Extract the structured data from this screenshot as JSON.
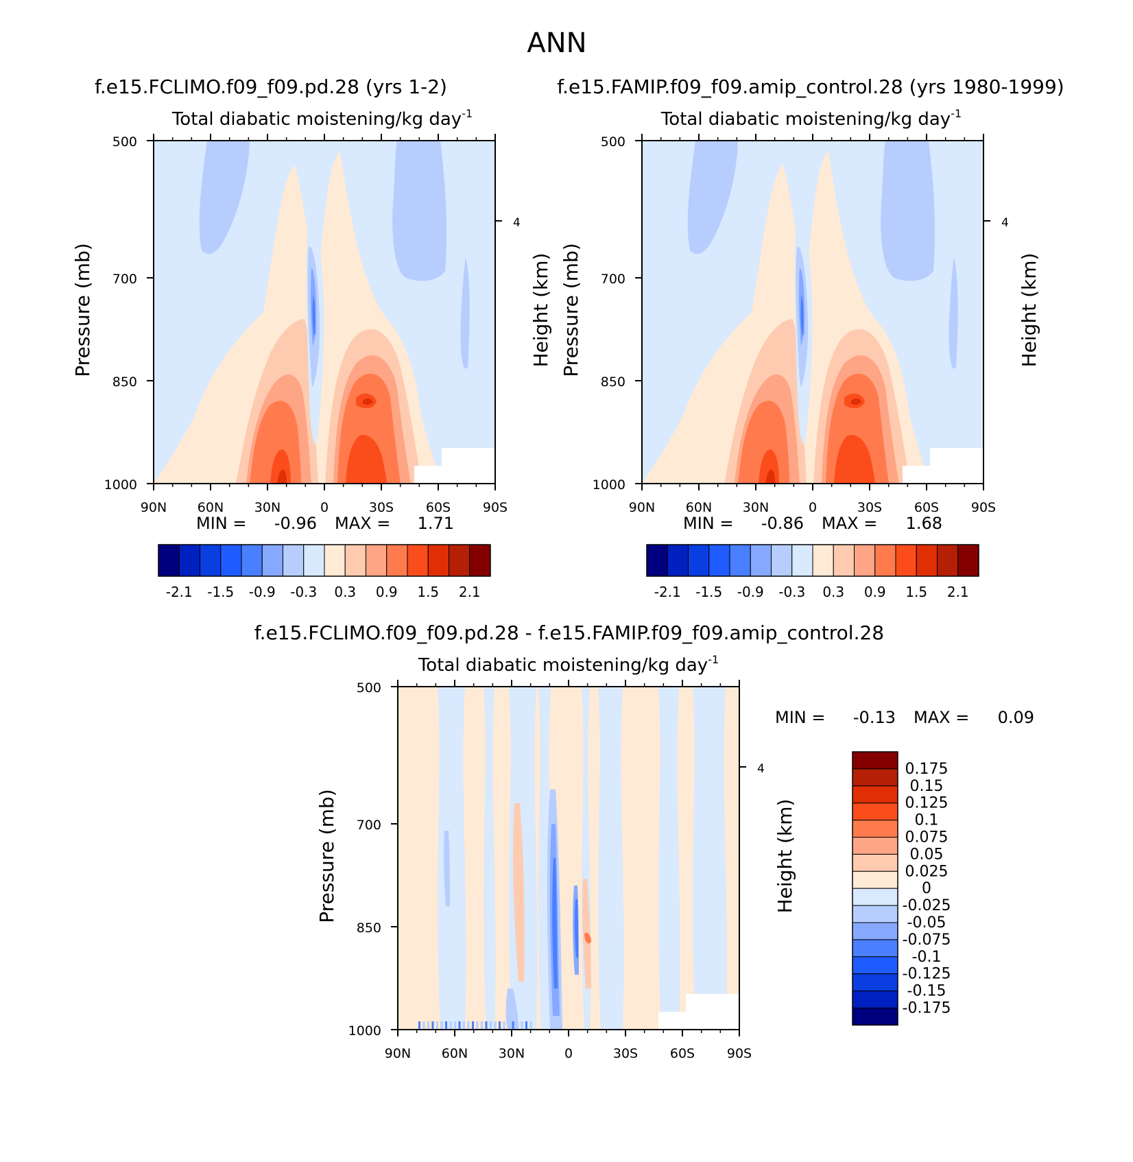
{
  "page_title": "ANN",
  "chart_data": [
    {
      "type": "heatmap",
      "id": "panel-test",
      "case_title": "f.e15.FCLIMO.f09_f09.pd.28 (yrs 1-2)",
      "title": "Total diabatic moistening/kg day",
      "title_exponent": "-1",
      "ylabel": "Pressure (mb)",
      "ylabel_right": "Height (km)",
      "y_ticks": [
        "500",
        "700",
        "850",
        "1000"
      ],
      "y_right_ticks": [
        "4"
      ],
      "x_ticks": [
        "90N",
        "60N",
        "30N",
        "0",
        "30S",
        "60S",
        "90S"
      ],
      "min_label": "MIN =",
      "min": "-0.96",
      "max_label": "MAX =",
      "max": "1.71",
      "colorbar_labels": [
        "-2.1",
        "-1.5",
        "-0.9",
        "-0.3",
        "0.3",
        "0.9",
        "1.5",
        "2.1"
      ]
    },
    {
      "type": "heatmap",
      "id": "panel-ref",
      "case_title": "f.e15.FAMIP.f09_f09.amip_control.28 (yrs 1980-1999)",
      "title": "Total diabatic moistening/kg day",
      "title_exponent": "-1",
      "ylabel": "Pressure (mb)",
      "ylabel_right": "Height (km)",
      "y_ticks": [
        "500",
        "700",
        "850",
        "1000"
      ],
      "y_right_ticks": [
        "4"
      ],
      "x_ticks": [
        "90N",
        "60N",
        "30N",
        "0",
        "30S",
        "60S",
        "90S"
      ],
      "min_label": "MIN =",
      "min": "-0.86",
      "max_label": "MAX =",
      "max": "1.68",
      "colorbar_labels": [
        "-2.1",
        "-1.5",
        "-0.9",
        "-0.3",
        "0.3",
        "0.9",
        "1.5",
        "2.1"
      ]
    },
    {
      "type": "heatmap",
      "id": "panel-diff",
      "case_title": "f.e15.FCLIMO.f09_f09.pd.28 - f.e15.FAMIP.f09_f09.amip_control.28",
      "title": "Total diabatic moistening/kg day",
      "title_exponent": "-1",
      "ylabel": "Pressure (mb)",
      "ylabel_right": "Height (km)",
      "y_ticks": [
        "500",
        "700",
        "850",
        "1000"
      ],
      "y_right_ticks": [
        "4"
      ],
      "x_ticks": [
        "90N",
        "60N",
        "30N",
        "0",
        "30S",
        "60S",
        "90S"
      ],
      "min_label": "MIN =",
      "min": "-0.13",
      "max_label": "MAX =",
      "max": "0.09",
      "colorbar_labels": [
        "0.175",
        "0.15",
        "0.125",
        "0.1",
        "0.075",
        "0.05",
        "0.025",
        "0",
        "-0.025",
        "-0.05",
        "-0.075",
        "-0.1",
        "-0.125",
        "-0.15",
        "-0.175"
      ]
    }
  ],
  "colors": {
    "palette": [
      "#00007f",
      "#0020c0",
      "#0a3ee0",
      "#1f5bff",
      "#4a7fff",
      "#86a9ff",
      "#b6cdfe",
      "#d9e9fe",
      "#feead5",
      "#fecbb0",
      "#fea585",
      "#ff7b4e",
      "#fb4d1c",
      "#e02f05",
      "#b51f05",
      "#840000"
    ],
    "background_field": "#d9e9fe",
    "diff_background": "#feead5"
  }
}
